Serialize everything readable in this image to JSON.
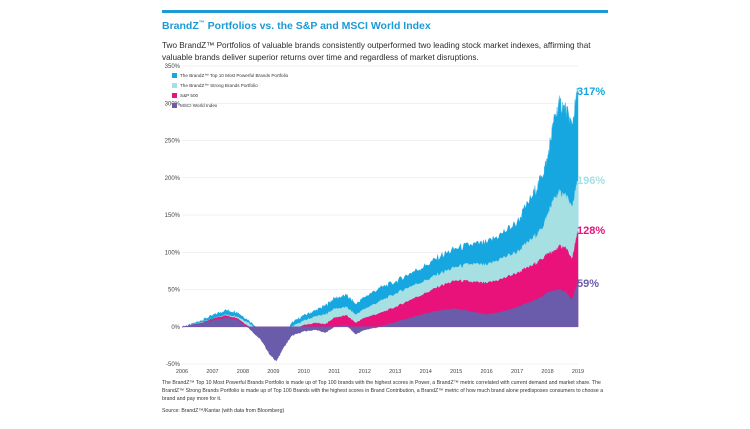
{
  "header": {
    "title_prefix": "BrandZ",
    "title_tm": "™",
    "title_suffix": " Portfolios vs. the S&P and MSCI World Index",
    "subtitle": "Two BrandZ™ Portfolios of valuable brands consistently outperformed two leading stock market indexes, affirming that valuable brands deliver superior returns over time and regardless of market disruptions."
  },
  "footnote": "The BrandZ™ Top 10 Most Powerful Brands Portfolio is made up of Top 100 brands with the highest scores in Power, a BrandZ™ metric correlated with current demand and market share. The BrandZ™ Strong Brands Portfolio is made up of Top 100 Brands with the highest scores in Brand Contribution, a BrandZ™ metric of how much brand alone predisposes consumers to choose a brand and pay more for it.",
  "source": "Source: BrandZ™/Kantar (with data from Bloomberg)",
  "colors": {
    "top10": "#17a7e0",
    "strong": "#a6e0e2",
    "sp500": "#e8127a",
    "msci": "#6a5bab",
    "title": "#1b9ad6"
  },
  "chart_data": {
    "type": "area",
    "title": "BrandZ™ Portfolios vs. the S&P and MSCI World Index",
    "xlabel": "",
    "ylabel": "",
    "x_ticks": [
      "2006",
      "2007",
      "2008",
      "2009",
      "2010",
      "2011",
      "2012",
      "2013",
      "2014",
      "2015",
      "2016",
      "2017",
      "2018",
      "2019"
    ],
    "y_ticks": [
      "350%",
      "300%",
      "250%",
      "200%",
      "150%",
      "100%",
      "50%",
      "0%",
      "-50%"
    ],
    "ylim": [
      -50,
      350
    ],
    "xlim": [
      2006,
      2019
    ],
    "grid": true,
    "legend_position": "top-left",
    "series": [
      {
        "name": "The BrandZ™ Top 10 Most Powerful Brands Portfolio",
        "color": "#17a7e0",
        "end_label": "317%",
        "points": [
          [
            2006,
            0
          ],
          [
            2006.3,
            3
          ],
          [
            2006.6,
            8
          ],
          [
            2007,
            15
          ],
          [
            2007.4,
            22
          ],
          [
            2007.8,
            20
          ],
          [
            2008.2,
            8
          ],
          [
            2008.6,
            -5
          ],
          [
            2008.9,
            -30
          ],
          [
            2009.1,
            -40
          ],
          [
            2009.3,
            -20
          ],
          [
            2009.6,
            5
          ],
          [
            2010,
            15
          ],
          [
            2010.4,
            22
          ],
          [
            2010.7,
            28
          ],
          [
            2011,
            38
          ],
          [
            2011.4,
            42
          ],
          [
            2011.7,
            30
          ],
          [
            2012,
            40
          ],
          [
            2012.5,
            52
          ],
          [
            2013,
            60
          ],
          [
            2013.5,
            72
          ],
          [
            2014,
            82
          ],
          [
            2014.5,
            95
          ],
          [
            2015,
            105
          ],
          [
            2015.5,
            110
          ],
          [
            2016,
            112
          ],
          [
            2016.5,
            125
          ],
          [
            2017,
            140
          ],
          [
            2017.5,
            175
          ],
          [
            2017.8,
            200
          ],
          [
            2018.0,
            225
          ],
          [
            2018.2,
            275
          ],
          [
            2018.4,
            300
          ],
          [
            2018.6,
            290
          ],
          [
            2018.8,
            270
          ],
          [
            2019,
            317
          ]
        ]
      },
      {
        "name": "The BrandZ™ Strong Brands Portfolio",
        "color": "#a6e0e2",
        "end_label": "196%",
        "points": [
          [
            2006,
            0
          ],
          [
            2006.3,
            2
          ],
          [
            2006.6,
            6
          ],
          [
            2007,
            10
          ],
          [
            2007.4,
            16
          ],
          [
            2007.8,
            14
          ],
          [
            2008.2,
            5
          ],
          [
            2008.6,
            -8
          ],
          [
            2008.9,
            -30
          ],
          [
            2009.1,
            -38
          ],
          [
            2009.3,
            -22
          ],
          [
            2009.6,
            0
          ],
          [
            2010,
            8
          ],
          [
            2010.4,
            14
          ],
          [
            2010.7,
            16
          ],
          [
            2011,
            24
          ],
          [
            2011.4,
            26
          ],
          [
            2011.7,
            16
          ],
          [
            2012,
            24
          ],
          [
            2012.5,
            34
          ],
          [
            2013,
            44
          ],
          [
            2013.5,
            54
          ],
          [
            2014,
            62
          ],
          [
            2014.5,
            72
          ],
          [
            2015,
            80
          ],
          [
            2015.5,
            84
          ],
          [
            2016,
            82
          ],
          [
            2016.5,
            92
          ],
          [
            2017,
            100
          ],
          [
            2017.5,
            118
          ],
          [
            2017.8,
            130
          ],
          [
            2018.0,
            150
          ],
          [
            2018.2,
            170
          ],
          [
            2018.4,
            180
          ],
          [
            2018.6,
            175
          ],
          [
            2018.8,
            160
          ],
          [
            2019,
            196
          ]
        ]
      },
      {
        "name": "S&P 500",
        "color": "#e8127a",
        "end_label": "128%",
        "points": [
          [
            2006,
            0
          ],
          [
            2006.3,
            2
          ],
          [
            2006.6,
            5
          ],
          [
            2007,
            10
          ],
          [
            2007.4,
            15
          ],
          [
            2007.8,
            12
          ],
          [
            2008.2,
            0
          ],
          [
            2008.6,
            -15
          ],
          [
            2008.9,
            -35
          ],
          [
            2009.1,
            -42
          ],
          [
            2009.3,
            -25
          ],
          [
            2009.6,
            -5
          ],
          [
            2010,
            2
          ],
          [
            2010.4,
            5
          ],
          [
            2010.7,
            3
          ],
          [
            2011,
            12
          ],
          [
            2011.4,
            15
          ],
          [
            2011.7,
            5
          ],
          [
            2012,
            12
          ],
          [
            2012.5,
            18
          ],
          [
            2013,
            26
          ],
          [
            2013.5,
            36
          ],
          [
            2014,
            45
          ],
          [
            2014.5,
            55
          ],
          [
            2015,
            62
          ],
          [
            2015.5,
            60
          ],
          [
            2016,
            58
          ],
          [
            2016.5,
            64
          ],
          [
            2017,
            72
          ],
          [
            2017.5,
            82
          ],
          [
            2017.8,
            90
          ],
          [
            2018.0,
            98
          ],
          [
            2018.2,
            100
          ],
          [
            2018.4,
            108
          ],
          [
            2018.6,
            105
          ],
          [
            2018.8,
            90
          ],
          [
            2019,
            128
          ]
        ]
      },
      {
        "name": "MSCI World Index",
        "color": "#6a5bab",
        "end_label": "59%",
        "points": [
          [
            2006,
            0
          ],
          [
            2006.3,
            2
          ],
          [
            2006.6,
            5
          ],
          [
            2007,
            8
          ],
          [
            2007.4,
            12
          ],
          [
            2007.8,
            10
          ],
          [
            2008.2,
            -2
          ],
          [
            2008.6,
            -18
          ],
          [
            2008.9,
            -38
          ],
          [
            2009.1,
            -46
          ],
          [
            2009.3,
            -30
          ],
          [
            2009.6,
            -12
          ],
          [
            2010,
            -6
          ],
          [
            2010.4,
            -4
          ],
          [
            2010.7,
            -8
          ],
          [
            2011,
            0
          ],
          [
            2011.4,
            2
          ],
          [
            2011.7,
            -10
          ],
          [
            2012,
            -4
          ],
          [
            2012.5,
            0
          ],
          [
            2013,
            6
          ],
          [
            2013.5,
            12
          ],
          [
            2014,
            18
          ],
          [
            2014.5,
            22
          ],
          [
            2015,
            24
          ],
          [
            2015.5,
            20
          ],
          [
            2016,
            16
          ],
          [
            2016.5,
            20
          ],
          [
            2017,
            26
          ],
          [
            2017.5,
            34
          ],
          [
            2017.8,
            40
          ],
          [
            2018.0,
            46
          ],
          [
            2018.2,
            48
          ],
          [
            2018.4,
            50
          ],
          [
            2018.6,
            46
          ],
          [
            2018.8,
            36
          ],
          [
            2019,
            59
          ]
        ]
      }
    ]
  }
}
